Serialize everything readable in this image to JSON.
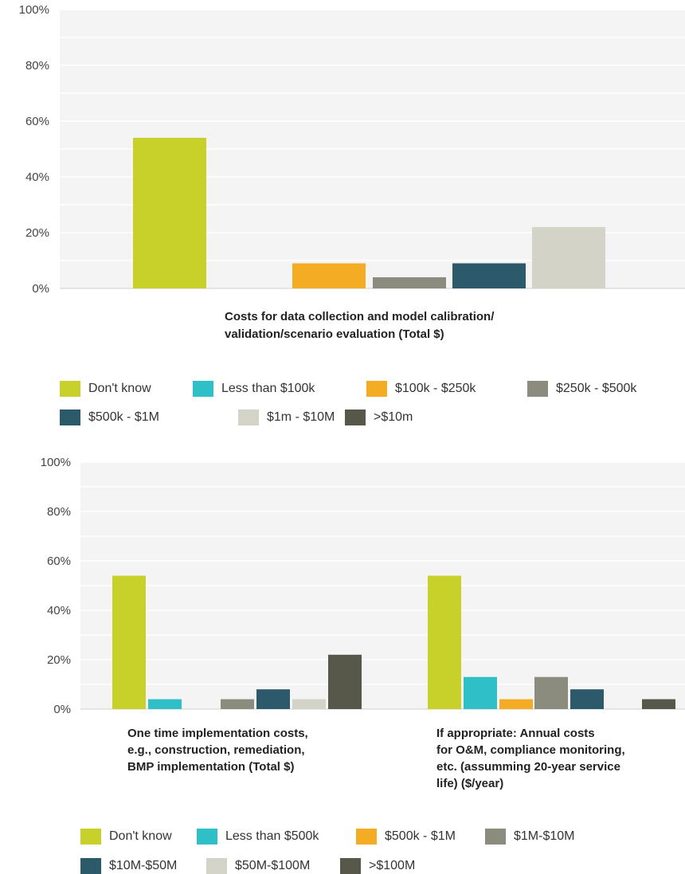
{
  "chart_data": [
    {
      "type": "bar",
      "title": "",
      "xlabel": "",
      "ylabel": "",
      "ylim": [
        0,
        100
      ],
      "yticks": [
        "0%",
        "20%",
        "40%",
        "60%",
        "80%",
        "100%"
      ],
      "grid": true,
      "legend_position": "bottom",
      "categories": [
        "Costs for data collection and model calibration/ validation/scenario evaluation (Total $)"
      ],
      "category_lines": [
        [
          "Costs for data collection and model calibration/",
          "validation/scenario evaluation (Total $)"
        ]
      ],
      "series": [
        {
          "name": "Don't know",
          "color": "#c8d02a",
          "values": [
            54
          ]
        },
        {
          "name": "Less than $100k",
          "color": "#2fbfc6",
          "values": [
            0
          ]
        },
        {
          "name": "$100k - $250k",
          "color": "#f5ac25",
          "values": [
            9
          ]
        },
        {
          "name": "$250k - $500k",
          "color": "#8c8c7e",
          "values": [
            4
          ]
        },
        {
          "name": "$500k - $1M",
          "color": "#2d5a6b",
          "values": [
            9
          ]
        },
        {
          "name": "$1m - $10M",
          "color": "#d3d3c7",
          "values": [
            22
          ]
        },
        {
          "name": ">$10m",
          "color": "#57574a",
          "values": [
            0
          ]
        }
      ]
    },
    {
      "type": "bar",
      "title": "",
      "xlabel": "",
      "ylabel": "",
      "ylim": [
        0,
        100
      ],
      "yticks": [
        "0%",
        "20%",
        "40%",
        "60%",
        "80%",
        "100%"
      ],
      "grid": true,
      "legend_position": "bottom",
      "categories": [
        "One time implementation costs, e.g., construction, remediation, BMP implementation (Total $)",
        "If appropriate: Annual costs for O&M, compliance monitoring, etc. (assumming 20-year service life) ($/year)"
      ],
      "category_lines": [
        [
          "One time implementation costs,",
          "e.g., construction, remediation,",
          "BMP implementation (Total $)"
        ],
        [
          "If appropriate: Annual costs",
          "for O&M, compliance monitoring,",
          "etc. (assumming 20-year service",
          "life) ($/year)"
        ]
      ],
      "series": [
        {
          "name": "Don't know",
          "color": "#c8d02a",
          "values": [
            54,
            54
          ]
        },
        {
          "name": "Less than $500k",
          "color": "#2fbfc6",
          "values": [
            4,
            13
          ]
        },
        {
          "name": "$500k - $1M",
          "color": "#f5ac25",
          "values": [
            0,
            4
          ]
        },
        {
          "name": "$1M-$10M",
          "color": "#8c8c7e",
          "values": [
            4,
            13
          ]
        },
        {
          "name": "$10M-$50M",
          "color": "#2d5a6b",
          "values": [
            8,
            8
          ]
        },
        {
          "name": "$50M-$100M",
          "color": "#d3d3c7",
          "values": [
            4,
            0
          ]
        },
        {
          "name": ">$100M",
          "color": "#57574a",
          "values": [
            22,
            4
          ]
        }
      ]
    }
  ]
}
